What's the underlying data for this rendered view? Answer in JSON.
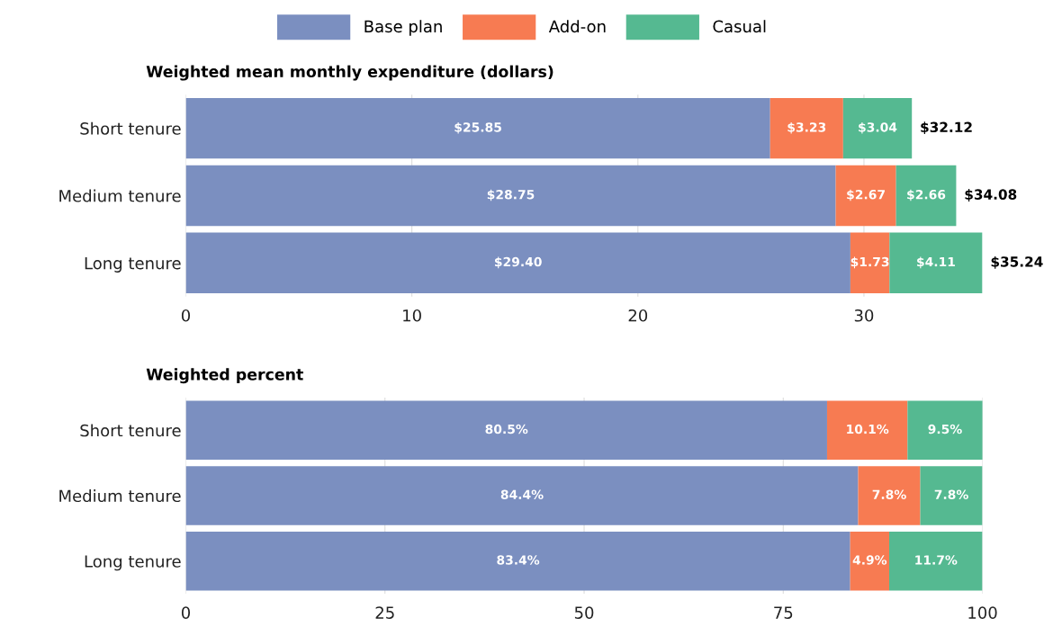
{
  "chart_data": [
    {
      "type": "bar",
      "orientation": "horizontal",
      "stacked": true,
      "title": "Weighted mean monthly expenditure (dollars)",
      "categories": [
        "Short tenure",
        "Medium tenure",
        "Long tenure"
      ],
      "series": [
        {
          "name": "Base plan",
          "color": "#7b8fc0",
          "values": [
            25.85,
            28.75,
            29.4
          ],
          "value_labels": [
            "$25.85",
            "$28.75",
            "$29.40"
          ]
        },
        {
          "name": "Add-on",
          "color": "#f77b52",
          "values": [
            3.23,
            2.67,
            1.73
          ],
          "value_labels": [
            "$3.23",
            "$2.67",
            "$1.73"
          ]
        },
        {
          "name": "Casual",
          "color": "#55b991",
          "values": [
            3.04,
            2.66,
            4.11
          ],
          "value_labels": [
            "$3.04",
            "$2.66",
            "$4.11"
          ]
        }
      ],
      "totals": [
        "$32.12",
        "$34.08",
        "$35.24"
      ],
      "xlim": [
        0,
        35.24
      ],
      "xticks": [
        0,
        10,
        20,
        30
      ],
      "grid": "x",
      "legend": "top"
    },
    {
      "type": "bar",
      "orientation": "horizontal",
      "stacked": true,
      "title": "Weighted percent",
      "categories": [
        "Short tenure",
        "Medium tenure",
        "Long tenure"
      ],
      "series": [
        {
          "color": "#7b8fc0",
          "values": [
            80.5,
            84.4,
            83.4
          ],
          "value_labels": [
            "80.5%",
            "84.4%",
            "83.4%"
          ]
        },
        {
          "color": "#f77b52",
          "values": [
            10.1,
            7.8,
            4.9
          ],
          "value_labels": [
            "10.1%",
            "7.8%",
            "4.9%"
          ]
        },
        {
          "color": "#55b991",
          "values": [
            9.5,
            7.8,
            11.7
          ],
          "value_labels": [
            "9.5%",
            "7.8%",
            "11.7%"
          ]
        }
      ],
      "xlim": [
        0,
        100
      ],
      "xticks": [
        0,
        25,
        50,
        75,
        100
      ],
      "grid": "x"
    }
  ]
}
